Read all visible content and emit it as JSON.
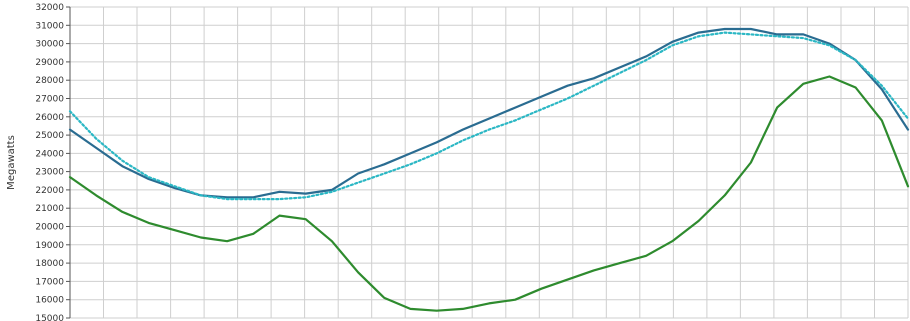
{
  "chart_data": {
    "type": "line",
    "title": "",
    "xlabel": "",
    "ylabel": "Megawatts",
    "ylim": [
      15000,
      32000
    ],
    "yticks": [
      15000,
      16000,
      17000,
      18000,
      19000,
      20000,
      21000,
      22000,
      23000,
      24000,
      25000,
      26000,
      27000,
      28000,
      29000,
      30000,
      31000,
      32000
    ],
    "x": [
      0,
      1,
      2,
      3,
      4,
      5,
      6,
      7,
      8,
      9,
      10,
      11,
      12,
      13,
      14,
      15,
      16,
      17,
      18,
      19,
      20,
      21,
      22,
      23,
      24,
      25,
      26,
      27,
      28,
      29,
      30,
      31,
      32
    ],
    "xlim": [
      0,
      32
    ],
    "grid": true,
    "series": [
      {
        "color": "#2a6c91",
        "style": "solid",
        "values": [
          25300,
          24300,
          23300,
          22600,
          22100,
          21700,
          21600,
          21600,
          21900,
          21800,
          22000,
          22900,
          23400,
          24000,
          24600,
          25300,
          25900,
          26500,
          27100,
          27700,
          28100,
          28700,
          29300,
          30100,
          30600,
          30800,
          30800,
          30500,
          30500,
          30000,
          29100,
          27500,
          25300
        ]
      },
      {
        "color": "#2bb7c4",
        "style": "dotted",
        "values": [
          26300,
          24800,
          23600,
          22700,
          22200,
          21700,
          21500,
          21500,
          21500,
          21600,
          21900,
          22400,
          22900,
          23400,
          24000,
          24700,
          25300,
          25800,
          26400,
          27000,
          27700,
          28400,
          29100,
          29900,
          30400,
          30600,
          30500,
          30400,
          30300,
          29900,
          29100,
          27700,
          25900
        ]
      },
      {
        "color": "#2e8b2e",
        "style": "solid",
        "values": [
          22700,
          21700,
          20800,
          20200,
          19800,
          19400,
          19200,
          19600,
          20600,
          20400,
          19200,
          17500,
          16100,
          15500,
          15400,
          15500,
          15800,
          16000,
          16600,
          17100,
          17600,
          18000,
          18400,
          19200,
          20300,
          21700,
          23500,
          26500,
          27800,
          28200,
          27600,
          25800,
          22200
        ]
      }
    ]
  }
}
